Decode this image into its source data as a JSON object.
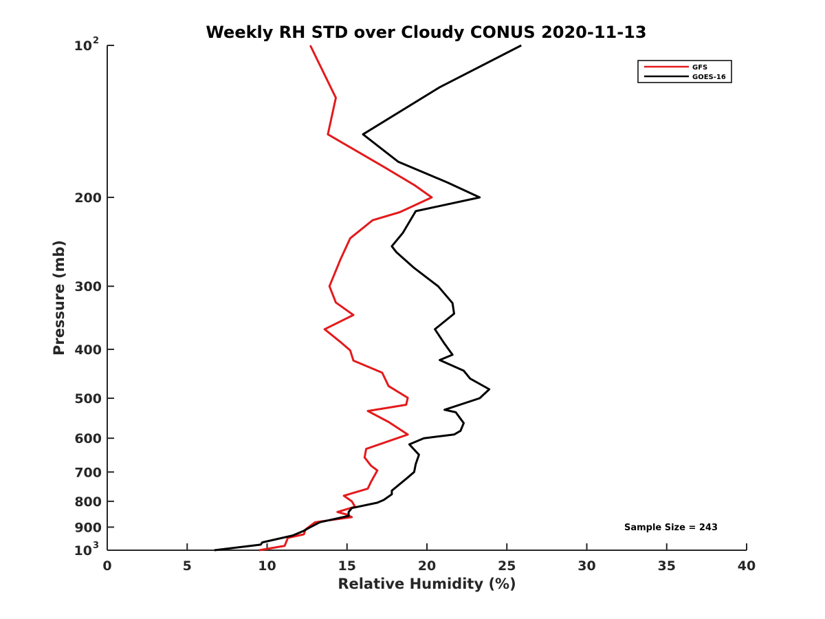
{
  "chart_data": {
    "type": "line",
    "title": "Weekly RH STD over Cloudy CONUS 2020-11-13",
    "xlabel": "Relative Humidity (%)",
    "ylabel": "Pressure (mb)",
    "xlim": [
      0,
      40
    ],
    "ylim": [
      100,
      1000
    ],
    "y_scale": "log",
    "y_reversed": true,
    "grid": false,
    "legend_position": "top-right",
    "x_ticks": [
      {
        "value": 0,
        "label": "0"
      },
      {
        "value": 5,
        "label": "5"
      },
      {
        "value": 10,
        "label": "10"
      },
      {
        "value": 15,
        "label": "15"
      },
      {
        "value": 20,
        "label": "20"
      },
      {
        "value": 25,
        "label": "25"
      },
      {
        "value": 30,
        "label": "30"
      },
      {
        "value": 35,
        "label": "35"
      },
      {
        "value": 40,
        "label": "40"
      }
    ],
    "y_ticks": [
      {
        "value": 100,
        "label": "10",
        "exp": "2"
      },
      {
        "value": 200,
        "label": "200"
      },
      {
        "value": 300,
        "label": "300"
      },
      {
        "value": 400,
        "label": "400"
      },
      {
        "value": 500,
        "label": "500"
      },
      {
        "value": 600,
        "label": "600"
      },
      {
        "value": 700,
        "label": "700"
      },
      {
        "value": 800,
        "label": "800"
      },
      {
        "value": 900,
        "label": "900"
      },
      {
        "value": 1000,
        "label": "10",
        "exp": "3"
      }
    ],
    "series": [
      {
        "name": "GFS",
        "color": "#e31a1c",
        "x": [
          12.7,
          14.3,
          13.8,
          17.3,
          19.2,
          20.3,
          18.3,
          16.6,
          15.2,
          14.6,
          13.9,
          14.3,
          15.4,
          13.6,
          14.6,
          15.2,
          15.4,
          17.2,
          17.6,
          18.8,
          18.7,
          16.3,
          17.6,
          18.8,
          16.2,
          16.1,
          16.5,
          16.9,
          16.5,
          16.3,
          14.8,
          15.3,
          15.5,
          14.4,
          15.0,
          15.3,
          13.0,
          12.4,
          12.3,
          11.3,
          11.1,
          9.5
        ],
        "y": [
          100,
          127,
          150,
          174,
          189,
          200,
          214,
          222,
          241,
          265,
          300,
          323,
          342,
          365,
          387,
          402,
          421,
          445,
          473,
          499,
          515,
          530,
          557,
          590,
          630,
          655,
          680,
          695,
          732,
          755,
          780,
          800,
          820,
          840,
          850,
          860,
          880,
          910,
          930,
          945,
          980,
          1000
        ]
      },
      {
        "name": "GOES-16",
        "color": "#000000",
        "x": [
          25.9,
          20.8,
          16.0,
          18.2,
          21.3,
          23.3,
          19.3,
          18.5,
          17.8,
          18.1,
          19.2,
          20.7,
          21.6,
          21.7,
          20.5,
          21.1,
          21.6,
          20.8,
          22.3,
          22.7,
          23.9,
          23.3,
          21.1,
          21.8,
          22.3,
          22.1,
          21.7,
          19.8,
          18.9,
          19.5,
          19.3,
          19.2,
          18.7,
          17.8,
          17.8,
          17.3,
          16.9,
          15.3,
          15.1,
          15.1,
          13.3,
          12.6,
          12.3,
          11.6,
          9.7,
          9.6,
          6.7
        ],
        "y": [
          100,
          121,
          150,
          170,
          187,
          200,
          213,
          235,
          250,
          257,
          276,
          300,
          324,
          340,
          365,
          390,
          410,
          420,
          441,
          457,
          480,
          500,
          527,
          533,
          560,
          580,
          590,
          600,
          617,
          647,
          675,
          700,
          722,
          762,
          775,
          795,
          805,
          825,
          840,
          855,
          880,
          904,
          915,
          935,
          965,
          975,
          1000
        ]
      }
    ],
    "annotations": [
      {
        "text": "Sample Size = 243"
      }
    ]
  }
}
